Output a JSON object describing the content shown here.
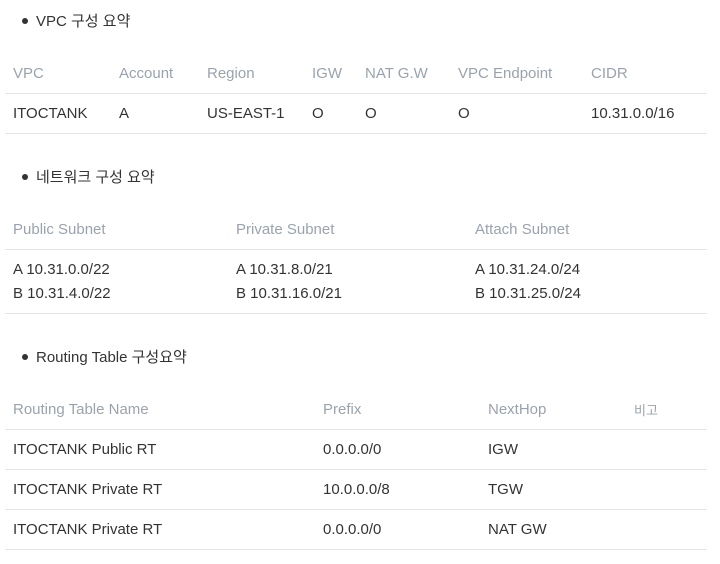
{
  "sections": {
    "vpc": {
      "title": "VPC 구성 요약",
      "headers": [
        "VPC",
        "Account",
        "Region",
        "IGW",
        "NAT G.W",
        "VPC Endpoint",
        "CIDR"
      ],
      "row": [
        "ITOCTANK",
        "A",
        "US-EAST-1",
        "O",
        "O",
        "O",
        "10.31.0.0/16"
      ]
    },
    "network": {
      "title": "네트워크 구성 요약",
      "headers": [
        "Public Subnet",
        "Private Subnet",
        "Attach Subnet"
      ],
      "row": [
        [
          "A 10.31.0.0/22",
          "B 10.31.4.0/22"
        ],
        [
          "A 10.31.8.0/21",
          "B 10.31.16.0/21"
        ],
        [
          "A 10.31.24.0/24",
          "B 10.31.25.0/24"
        ]
      ]
    },
    "routing": {
      "title": "Routing Table 구성요약",
      "headers": [
        "Routing Table Name",
        "Prefix",
        "NextHop",
        "비고"
      ],
      "rows": [
        [
          "ITOCTANK Public RT",
          "0.0.0.0/0",
          "IGW",
          ""
        ],
        [
          "ITOCTANK Private RT",
          "10.0.0.0/8",
          "TGW",
          ""
        ],
        [
          "ITOCTANK Private RT",
          "0.0.0.0/0",
          "NAT GW",
          ""
        ]
      ]
    }
  }
}
